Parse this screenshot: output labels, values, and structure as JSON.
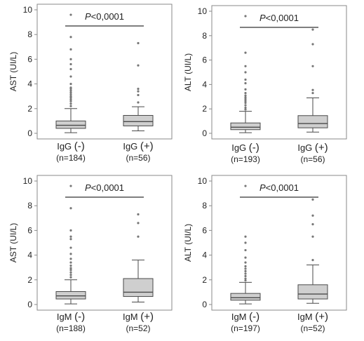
{
  "chart_data": [
    {
      "type": "box",
      "ylabel": "AST (UI/L)",
      "ylim": [
        0,
        10
      ],
      "yticks": [
        "0",
        "2",
        "4",
        "6",
        "8",
        "10"
      ],
      "significance": {
        "p_italic": "P",
        "p_rest": "<0,0001"
      },
      "categories": [
        {
          "label": "IgG",
          "sign": "(-)",
          "n": "(n=184)"
        },
        {
          "label": "IgG",
          "sign": "(+)",
          "n": "(n=56)"
        }
      ],
      "boxes": [
        {
          "whisker_low": 0.05,
          "q1": 0.4,
          "median": 0.65,
          "q3": 1.0,
          "whisker_high": 2.0,
          "outliers": [
            2.2,
            2.4,
            2.6,
            2.75,
            2.9,
            3.0,
            3.15,
            3.3,
            3.45,
            3.6,
            3.7,
            4.0,
            4.6,
            5.2,
            5.6,
            6.0,
            6.8,
            7.8,
            9.6
          ]
        },
        {
          "whisker_low": 0.2,
          "q1": 0.6,
          "median": 0.95,
          "q3": 1.45,
          "whisker_high": 2.15,
          "outliers": [
            2.5,
            3.1,
            3.4,
            3.6,
            5.5,
            7.3
          ]
        }
      ]
    },
    {
      "type": "box",
      "ylabel": "ALT (UI/L)",
      "ylim": [
        0,
        10
      ],
      "yticks": [
        "0",
        "2",
        "4",
        "6",
        "8",
        "10"
      ],
      "significance": {
        "p_italic": "P",
        "p_rest": "<0,0001"
      },
      "categories": [
        {
          "label": "IgG",
          "sign": "(-)",
          "n": "(n=193)"
        },
        {
          "label": "IgG",
          "sign": "(+)",
          "n": "(n=56)"
        }
      ],
      "boxes": [
        {
          "whisker_low": 0.05,
          "q1": 0.3,
          "median": 0.5,
          "q3": 0.85,
          "whisker_high": 1.8,
          "outliers": [
            1.95,
            2.1,
            2.3,
            2.5,
            2.65,
            2.8,
            2.95,
            3.1,
            3.3,
            3.6,
            4.1,
            4.4,
            5.0,
            5.5,
            6.6,
            9.6
          ]
        },
        {
          "whisker_low": 0.1,
          "q1": 0.45,
          "median": 0.8,
          "q3": 1.45,
          "whisker_high": 2.9,
          "outliers": [
            3.3,
            3.55,
            5.5,
            7.3,
            8.5
          ]
        }
      ]
    },
    {
      "type": "box",
      "ylabel": "AST (UI/L)",
      "ylim": [
        0,
        10
      ],
      "yticks": [
        "0",
        "2",
        "4",
        "6",
        "8",
        "10"
      ],
      "significance": {
        "p_italic": "P",
        "p_rest": "<0,0001"
      },
      "categories": [
        {
          "label": "IgM",
          "sign": "(-)",
          "n": "(n=188)"
        },
        {
          "label": "IgM",
          "sign": "(+)",
          "n": "(n=52)"
        }
      ],
      "boxes": [
        {
          "whisker_low": 0.05,
          "q1": 0.45,
          "median": 0.7,
          "q3": 1.05,
          "whisker_high": 2.0,
          "outliers": [
            2.2,
            2.4,
            2.6,
            2.8,
            2.95,
            3.15,
            3.4,
            3.7,
            4.1,
            4.6,
            5.3,
            5.5,
            6.0,
            7.8,
            9.6
          ]
        },
        {
          "whisker_low": 0.2,
          "q1": 0.65,
          "median": 1.0,
          "q3": 2.1,
          "whisker_high": 3.6,
          "outliers": [
            5.5,
            6.6,
            7.3
          ]
        }
      ]
    },
    {
      "type": "box",
      "ylabel": "ALT (UI/L)",
      "ylim": [
        0,
        10
      ],
      "yticks": [
        "0",
        "2",
        "4",
        "6",
        "8",
        "10"
      ],
      "significance": {
        "p_italic": "P",
        "p_rest": "<0,0001"
      },
      "categories": [
        {
          "label": "IgM",
          "sign": "(-)",
          "n": "(n=197)"
        },
        {
          "label": "IgM",
          "sign": "(+)",
          "n": "(n=52)"
        }
      ],
      "boxes": [
        {
          "whisker_low": 0.05,
          "q1": 0.35,
          "median": 0.55,
          "q3": 0.9,
          "whisker_high": 1.8,
          "outliers": [
            1.95,
            2.1,
            2.3,
            2.5,
            2.7,
            2.9,
            3.1,
            3.4,
            3.8,
            4.4,
            5.0,
            5.5,
            9.6
          ]
        },
        {
          "whisker_low": 0.1,
          "q1": 0.45,
          "median": 0.85,
          "q3": 1.6,
          "whisker_high": 3.2,
          "outliers": [
            3.6,
            5.5,
            6.5,
            7.2,
            8.5
          ]
        }
      ]
    }
  ],
  "colors": {
    "box_fill": "#cfcfcf",
    "box_line": "#4a4a4a",
    "frame": "#8a8a8a",
    "sig_bar": "#555555",
    "outlier": "#777777",
    "text": "#222222"
  }
}
